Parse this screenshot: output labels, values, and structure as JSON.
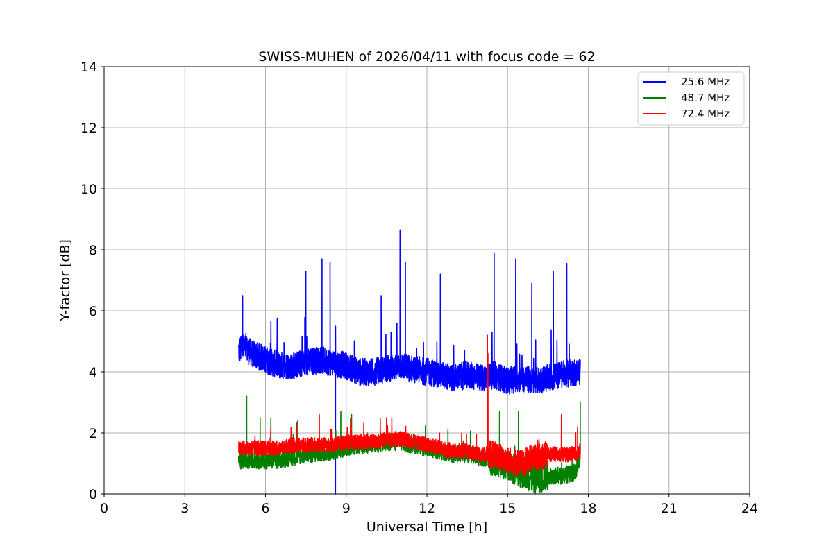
{
  "chart_data": {
    "type": "line",
    "title": "SWISS-MUHEN of 2026/04/11 with focus code = 62",
    "xlabel": "Universal Time [h]",
    "ylabel": "Y-factor [dB]",
    "xlim": [
      0,
      24
    ],
    "ylim": [
      0,
      14
    ],
    "xticks": [
      "0",
      "3",
      "6",
      "9",
      "12",
      "15",
      "18",
      "21",
      "24"
    ],
    "yticks": [
      "0",
      "2",
      "4",
      "6",
      "8",
      "10",
      "12",
      "14"
    ],
    "grid": true,
    "legend_position": "top-right",
    "series": [
      {
        "name": "25.6 MHz",
        "color": "#0000ff",
        "x": [
          5.0,
          5.2,
          5.5,
          6.0,
          6.5,
          7.0,
          7.5,
          8.0,
          8.5,
          9.0,
          9.5,
          10.0,
          10.5,
          11.0,
          11.5,
          12.0,
          12.5,
          13.0,
          13.5,
          14.0,
          14.5,
          15.0,
          15.5,
          16.0,
          16.5,
          17.0,
          17.5,
          17.7
        ],
        "y": [
          4.7,
          4.8,
          4.6,
          4.4,
          4.2,
          4.2,
          4.3,
          4.4,
          4.3,
          4.2,
          4.0,
          4.0,
          4.1,
          4.2,
          4.1,
          4.0,
          3.9,
          3.8,
          3.9,
          3.8,
          3.9,
          3.7,
          3.8,
          3.7,
          3.8,
          3.9,
          4.0,
          4.0
        ],
        "spikes": [
          [
            5.15,
            6.5
          ],
          [
            7.5,
            7.3
          ],
          [
            8.1,
            7.7
          ],
          [
            8.4,
            7.6
          ],
          [
            8.6,
            0.0
          ],
          [
            10.3,
            6.5
          ],
          [
            11.0,
            8.65
          ],
          [
            11.2,
            7.6
          ],
          [
            12.5,
            7.2
          ],
          [
            14.5,
            7.9
          ],
          [
            15.3,
            7.7
          ],
          [
            15.9,
            6.9
          ],
          [
            16.7,
            7.3
          ],
          [
            17.2,
            7.55
          ]
        ]
      },
      {
        "name": "48.7 MHz",
        "color": "#008000",
        "x": [
          5.0,
          5.5,
          6.0,
          6.5,
          7.0,
          7.5,
          8.0,
          8.5,
          9.0,
          9.5,
          10.0,
          10.5,
          11.0,
          11.5,
          12.0,
          12.5,
          13.0,
          13.5,
          14.0,
          14.5,
          15.0,
          15.5,
          16.0,
          16.5,
          17.0,
          17.5,
          17.7
        ],
        "y": [
          1.1,
          1.1,
          1.1,
          1.1,
          1.2,
          1.3,
          1.3,
          1.4,
          1.5,
          1.6,
          1.6,
          1.7,
          1.7,
          1.6,
          1.5,
          1.4,
          1.3,
          1.3,
          1.2,
          1.1,
          0.9,
          0.7,
          0.5,
          0.6,
          0.6,
          0.7,
          1.2
        ],
        "spikes": [
          [
            5.3,
            3.2
          ],
          [
            5.8,
            2.5
          ],
          [
            6.2,
            2.5
          ],
          [
            7.2,
            2.4
          ],
          [
            8.8,
            2.7
          ],
          [
            9.2,
            2.6
          ],
          [
            14.7,
            2.7
          ],
          [
            15.4,
            2.7
          ],
          [
            17.7,
            3.0
          ]
        ]
      },
      {
        "name": "72.4 MHz",
        "color": "#ff0000",
        "x": [
          5.0,
          5.5,
          6.0,
          6.5,
          7.0,
          7.5,
          8.0,
          8.5,
          9.0,
          9.5,
          10.0,
          10.5,
          11.0,
          11.5,
          12.0,
          12.5,
          13.0,
          13.5,
          14.0,
          14.5,
          15.0,
          15.5,
          16.0,
          16.5,
          17.0,
          17.5,
          17.7
        ],
        "y": [
          1.5,
          1.5,
          1.5,
          1.5,
          1.6,
          1.6,
          1.6,
          1.6,
          1.7,
          1.7,
          1.7,
          1.8,
          1.8,
          1.7,
          1.6,
          1.5,
          1.4,
          1.4,
          1.3,
          1.3,
          1.1,
          1.0,
          1.2,
          1.3,
          1.3,
          1.3,
          1.4
        ],
        "spikes": [
          [
            8.0,
            2.6
          ],
          [
            10.5,
            2.5
          ],
          [
            14.25,
            5.2
          ],
          [
            14.3,
            4.6
          ],
          [
            17.0,
            2.6
          ],
          [
            17.6,
            2.2
          ]
        ]
      }
    ]
  }
}
